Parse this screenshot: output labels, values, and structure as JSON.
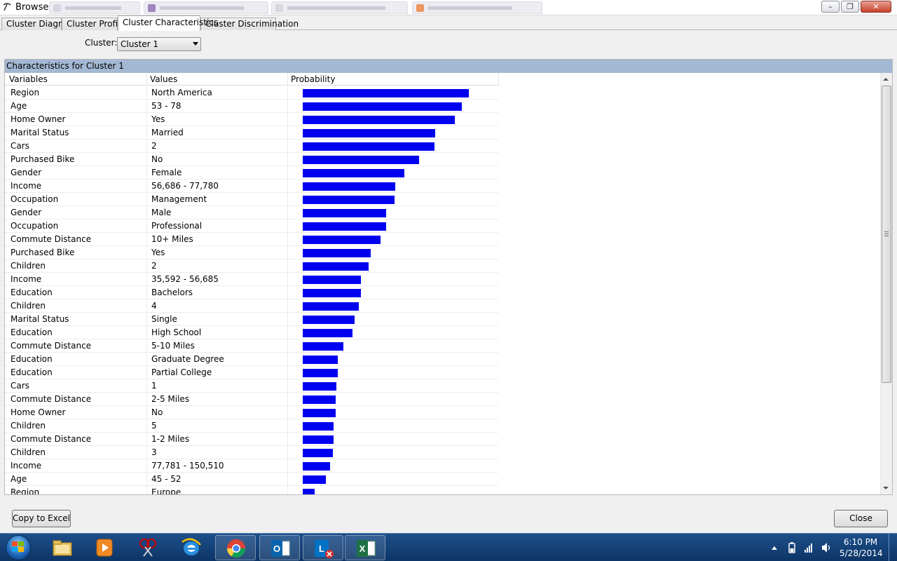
{
  "window": {
    "title": "Browse",
    "minimize_icon": "minimize-icon",
    "maximize_icon": "maximize-icon",
    "close_icon": "close-icon",
    "minimize_glyph": "–",
    "maximize_glyph": "❐",
    "close_glyph": "✕"
  },
  "tabs": [
    {
      "label": "Cluster Diagram",
      "active": false
    },
    {
      "label": "Cluster Profiles",
      "active": false
    },
    {
      "label": "Cluster Characteristics",
      "active": true
    },
    {
      "label": "Cluster Discrimination",
      "active": false
    }
  ],
  "cluster": {
    "label": "Cluster:",
    "selected": "Cluster 1"
  },
  "panel": {
    "title": "Characteristics for Cluster 1",
    "columns": {
      "variables": "Variables",
      "values": "Values",
      "probability": "Probability"
    },
    "bar_color": "#0000f0",
    "rows": [
      {
        "variable": "Region",
        "value": "North America",
        "probability": 0.954
      },
      {
        "variable": "Age",
        "value": "53 - 78",
        "probability": 0.917
      },
      {
        "variable": "Home Owner",
        "value": "Yes",
        "probability": 0.875
      },
      {
        "variable": "Marital Status",
        "value": "Married",
        "probability": 0.762
      },
      {
        "variable": "Cars",
        "value": "2",
        "probability": 0.758
      },
      {
        "variable": "Purchased Bike",
        "value": "No",
        "probability": 0.671
      },
      {
        "variable": "Gender",
        "value": "Female",
        "probability": 0.583
      },
      {
        "variable": "Income",
        "value": "56,686 - 77,780",
        "probability": 0.533
      },
      {
        "variable": "Occupation",
        "value": "Management",
        "probability": 0.529
      },
      {
        "variable": "Gender",
        "value": "Male",
        "probability": 0.479
      },
      {
        "variable": "Occupation",
        "value": "Professional",
        "probability": 0.479
      },
      {
        "variable": "Commute Distance",
        "value": "10+ Miles",
        "probability": 0.446
      },
      {
        "variable": "Purchased Bike",
        "value": "Yes",
        "probability": 0.392
      },
      {
        "variable": "Children",
        "value": "2",
        "probability": 0.379
      },
      {
        "variable": "Income",
        "value": "35,592 - 56,685",
        "probability": 0.333
      },
      {
        "variable": "Education",
        "value": "Bachelors",
        "probability": 0.333
      },
      {
        "variable": "Children",
        "value": "4",
        "probability": 0.321
      },
      {
        "variable": "Marital Status",
        "value": "Single",
        "probability": 0.3
      },
      {
        "variable": "Education",
        "value": "High School",
        "probability": 0.288
      },
      {
        "variable": "Commute Distance",
        "value": "5-10 Miles",
        "probability": 0.233
      },
      {
        "variable": "Education",
        "value": "Graduate Degree",
        "probability": 0.2
      },
      {
        "variable": "Education",
        "value": "Partial College",
        "probability": 0.2
      },
      {
        "variable": "Cars",
        "value": "1",
        "probability": 0.192
      },
      {
        "variable": "Commute Distance",
        "value": "2-5 Miles",
        "probability": 0.188
      },
      {
        "variable": "Home Owner",
        "value": "No",
        "probability": 0.188
      },
      {
        "variable": "Children",
        "value": "5",
        "probability": 0.179
      },
      {
        "variable": "Commute Distance",
        "value": "1-2 Miles",
        "probability": 0.179
      },
      {
        "variable": "Children",
        "value": "3",
        "probability": 0.175
      },
      {
        "variable": "Income",
        "value": "77,781 - 150,510",
        "probability": 0.158
      },
      {
        "variable": "Age",
        "value": "45 - 52",
        "probability": 0.133
      },
      {
        "variable": "Region",
        "value": "Europe",
        "probability": 0.067
      }
    ]
  },
  "buttons": {
    "copy_to_excel": "Copy to Excel",
    "close": "Close"
  },
  "taskbar": {
    "items": [
      {
        "icon": "file-explorer-icon"
      },
      {
        "icon": "media-player-icon"
      },
      {
        "icon": "snipping-tool-icon"
      },
      {
        "icon": "internet-explorer-icon"
      },
      {
        "icon": "chrome-icon"
      },
      {
        "icon": "outlook-icon"
      },
      {
        "icon": "lync-icon"
      },
      {
        "icon": "excel-icon"
      }
    ],
    "time": "6:10 PM",
    "date": "5/28/2014"
  }
}
